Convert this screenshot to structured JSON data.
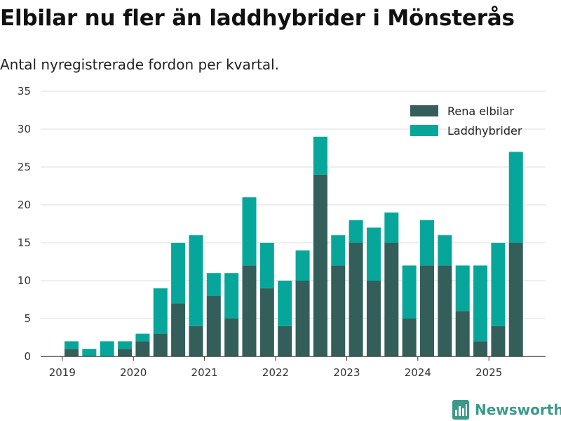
{
  "header": {
    "title": "Elbilar nu fler än laddhybrider i Mönsterås",
    "subtitle": "Antal nyregistrerade fordon per kvartal."
  },
  "brand": {
    "name": "Newsworthy",
    "icon": "newsworthy-chart-icon"
  },
  "colors": {
    "ev": "#345e59",
    "phev": "#06a79a",
    "grid": "#dddddd",
    "axis": "#333333",
    "brand": "#3a9a8a"
  },
  "chart_data": {
    "type": "bar",
    "stacked": true,
    "title": "Elbilar nu fler än laddhybrider i Mönsterås",
    "subtitle": "Antal nyregistrerade fordon per kvartal.",
    "xlabel": "",
    "ylabel": "",
    "ylim": [
      0,
      35
    ],
    "yticks": [
      0,
      5,
      10,
      15,
      20,
      25,
      30,
      35
    ],
    "xticks": [
      "2019",
      "2020",
      "2021",
      "2022",
      "2023",
      "2024",
      "2025"
    ],
    "legend_position": "top-right",
    "categories": [
      "2019 Q1",
      "2019 Q2",
      "2019 Q3",
      "2019 Q4",
      "2020 Q1",
      "2020 Q2",
      "2020 Q3",
      "2020 Q4",
      "2021 Q1",
      "2021 Q2",
      "2021 Q3",
      "2021 Q4",
      "2022 Q1",
      "2022 Q2",
      "2022 Q3",
      "2022 Q4",
      "2023 Q1",
      "2023 Q2",
      "2023 Q3",
      "2023 Q4",
      "2024 Q1",
      "2024 Q2",
      "2024 Q3",
      "2024 Q4",
      "2025 Q1",
      "2025 Q2",
      "2025 Q3"
    ],
    "series": [
      {
        "name": "Rena elbilar",
        "values": [
          1,
          0,
          0,
          1,
          2,
          3,
          7,
          4,
          8,
          5,
          12,
          9,
          4,
          10,
          24,
          12,
          15,
          10,
          15,
          5,
          12,
          12,
          6,
          2,
          4,
          15,
          0
        ]
      },
      {
        "name": "Laddhybrider",
        "values": [
          1,
          1,
          2,
          1,
          1,
          6,
          8,
          12,
          3,
          6,
          9,
          6,
          6,
          4,
          5,
          4,
          3,
          7,
          4,
          7,
          6,
          4,
          6,
          10,
          11,
          12,
          0
        ]
      }
    ]
  }
}
